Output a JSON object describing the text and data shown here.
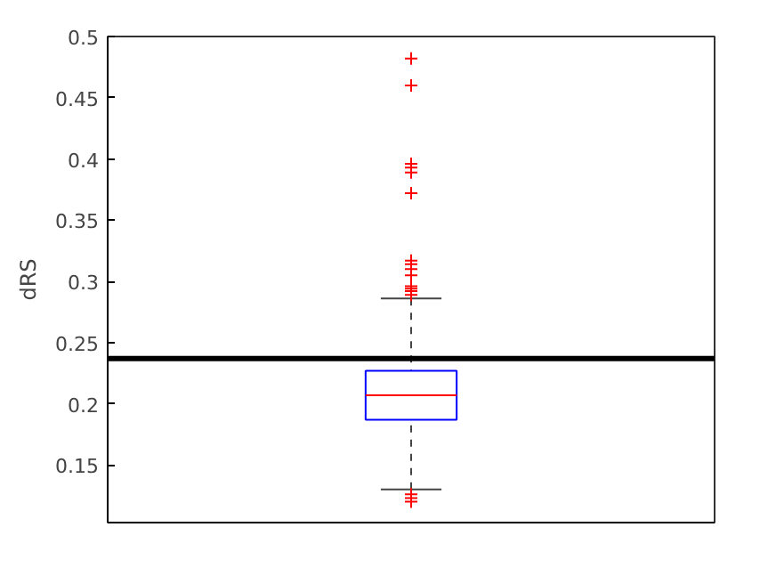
{
  "chart_data": {
    "type": "box",
    "ylabel": "dRS",
    "categories": [
      null
    ],
    "boxes": [
      {
        "low": 0.13,
        "q1": 0.187,
        "median": 0.207,
        "q3": 0.227,
        "high": 0.286,
        "outliers": [
          0.482,
          0.46,
          0.396,
          0.393,
          0.389,
          0.372,
          0.317,
          0.314,
          0.31,
          0.305,
          0.296,
          0.294,
          0.292,
          0.289,
          0.126,
          0.123,
          0.12
        ]
      }
    ],
    "color": "#0000ff",
    "ylim": [
      0.103,
      0.5
    ],
    "yticks": [
      0.15,
      0.2,
      0.25,
      0.3,
      0.35,
      0.4,
      0.45,
      0.5
    ],
    "ref_lines": [
      {
        "axis": "y",
        "value": 0.237,
        "color": "#000000"
      }
    ],
    "grid": false,
    "marker": "cross"
  }
}
